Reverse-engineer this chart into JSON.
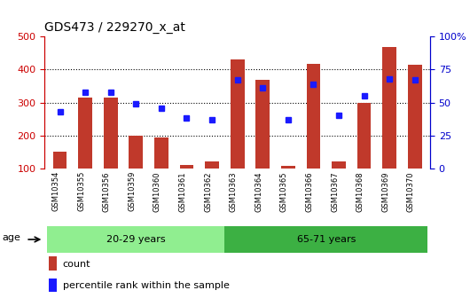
{
  "title": "GDS473 / 229270_x_at",
  "samples": [
    "GSM10354",
    "GSM10355",
    "GSM10356",
    "GSM10359",
    "GSM10360",
    "GSM10361",
    "GSM10362",
    "GSM10363",
    "GSM10364",
    "GSM10365",
    "GSM10366",
    "GSM10367",
    "GSM10368",
    "GSM10369",
    "GSM10370"
  ],
  "counts": [
    150,
    315,
    315,
    198,
    193,
    110,
    122,
    430,
    370,
    108,
    418,
    120,
    300,
    468,
    415
  ],
  "percentile_ranks": [
    43,
    58,
    58,
    49,
    46,
    38,
    37,
    67,
    61,
    37,
    64,
    40,
    55,
    68,
    67
  ],
  "groups": [
    {
      "label": "20-29 years",
      "start": 0,
      "end": 7,
      "color": "#90ee90"
    },
    {
      "label": "65-71 years",
      "start": 7,
      "end": 15,
      "color": "#3cb043"
    }
  ],
  "ylim_left": [
    100,
    500
  ],
  "ylim_right": [
    0,
    100
  ],
  "yticks_left": [
    100,
    200,
    300,
    400,
    500
  ],
  "yticks_right": [
    0,
    25,
    50,
    75,
    100
  ],
  "bar_color": "#c0392b",
  "marker_color": "#1a1aff",
  "bar_width": 0.55,
  "age_label": "age",
  "legend_items": [
    {
      "label": "count",
      "color": "#c0392b"
    },
    {
      "label": "percentile rank within the sample",
      "color": "#1a1aff"
    }
  ],
  "left_axis_color": "#cc0000",
  "right_axis_color": "#0000cc",
  "tick_bg_color": "#c8c8c8"
}
